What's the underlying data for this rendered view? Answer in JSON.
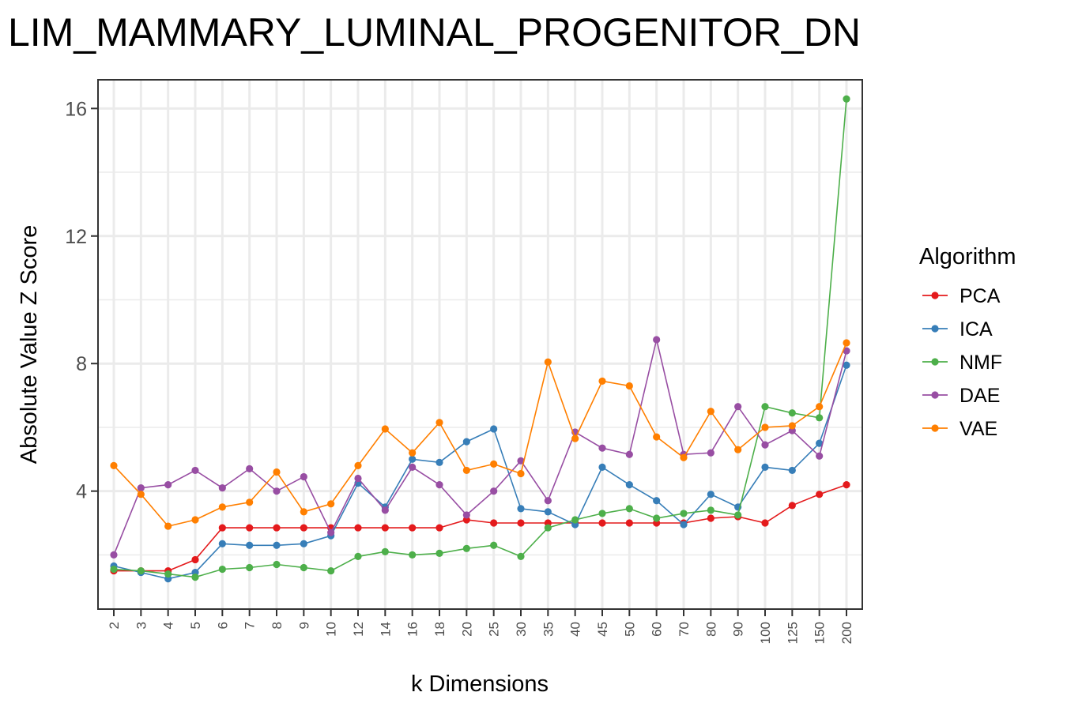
{
  "chart_data": {
    "type": "line",
    "title": "LIM_MAMMARY_LUMINAL_PROGENITOR_DN",
    "xlabel": "k Dimensions",
    "ylabel": "Absolute Value Z Score",
    "categories": [
      "2",
      "3",
      "4",
      "5",
      "6",
      "7",
      "8",
      "9",
      "10",
      "12",
      "14",
      "16",
      "18",
      "20",
      "25",
      "30",
      "35",
      "40",
      "45",
      "50",
      "60",
      "70",
      "80",
      "90",
      "100",
      "125",
      "150",
      "200"
    ],
    "yticks": [
      4,
      8,
      12,
      16
    ],
    "ylim": [
      0.3,
      16.9
    ],
    "grid": true,
    "legend": {
      "title": "Algorithm",
      "position": "right"
    },
    "series": [
      {
        "name": "PCA",
        "color": "#E41A1C",
        "values": [
          1.5,
          1.5,
          1.5,
          1.85,
          2.85,
          2.85,
          2.85,
          2.85,
          2.85,
          2.85,
          2.85,
          2.85,
          2.85,
          3.1,
          3.0,
          3.0,
          3.0,
          3.0,
          3.0,
          3.0,
          3.0,
          3.0,
          3.15,
          3.2,
          3.0,
          3.55,
          3.9,
          4.2
        ]
      },
      {
        "name": "ICA",
        "color": "#377EB8",
        "values": [
          1.65,
          1.45,
          1.25,
          1.45,
          2.35,
          2.3,
          2.3,
          2.35,
          2.6,
          4.25,
          3.5,
          5.0,
          4.9,
          5.55,
          5.95,
          3.45,
          3.35,
          2.95,
          4.75,
          4.2,
          3.7,
          2.95,
          3.9,
          3.5,
          4.75,
          4.65,
          5.5,
          7.95
        ]
      },
      {
        "name": "NMF",
        "color": "#4DAF4A",
        "values": [
          1.55,
          1.5,
          1.4,
          1.3,
          1.55,
          1.6,
          1.7,
          1.6,
          1.5,
          1.95,
          2.1,
          2.0,
          2.05,
          2.2,
          2.3,
          1.95,
          2.85,
          3.1,
          3.3,
          3.45,
          3.15,
          3.3,
          3.4,
          3.25,
          6.65,
          6.45,
          6.3,
          16.3
        ]
      },
      {
        "name": "DAE",
        "color": "#984EA3",
        "values": [
          2.0,
          4.1,
          4.2,
          4.65,
          4.1,
          4.7,
          4.0,
          4.45,
          2.7,
          4.4,
          3.4,
          4.75,
          4.2,
          3.25,
          4.0,
          4.95,
          3.7,
          5.85,
          5.35,
          5.15,
          8.75,
          5.15,
          5.2,
          6.65,
          5.45,
          5.9,
          5.1,
          8.4
        ]
      },
      {
        "name": "VAE",
        "color": "#FF7F00",
        "values": [
          4.8,
          3.9,
          2.9,
          3.1,
          3.5,
          3.65,
          4.6,
          3.35,
          3.6,
          4.8,
          5.95,
          5.2,
          6.15,
          4.65,
          4.85,
          4.55,
          8.05,
          5.65,
          7.45,
          7.3,
          5.7,
          5.05,
          6.5,
          5.3,
          6.0,
          6.05,
          6.65,
          8.65
        ]
      }
    ]
  }
}
